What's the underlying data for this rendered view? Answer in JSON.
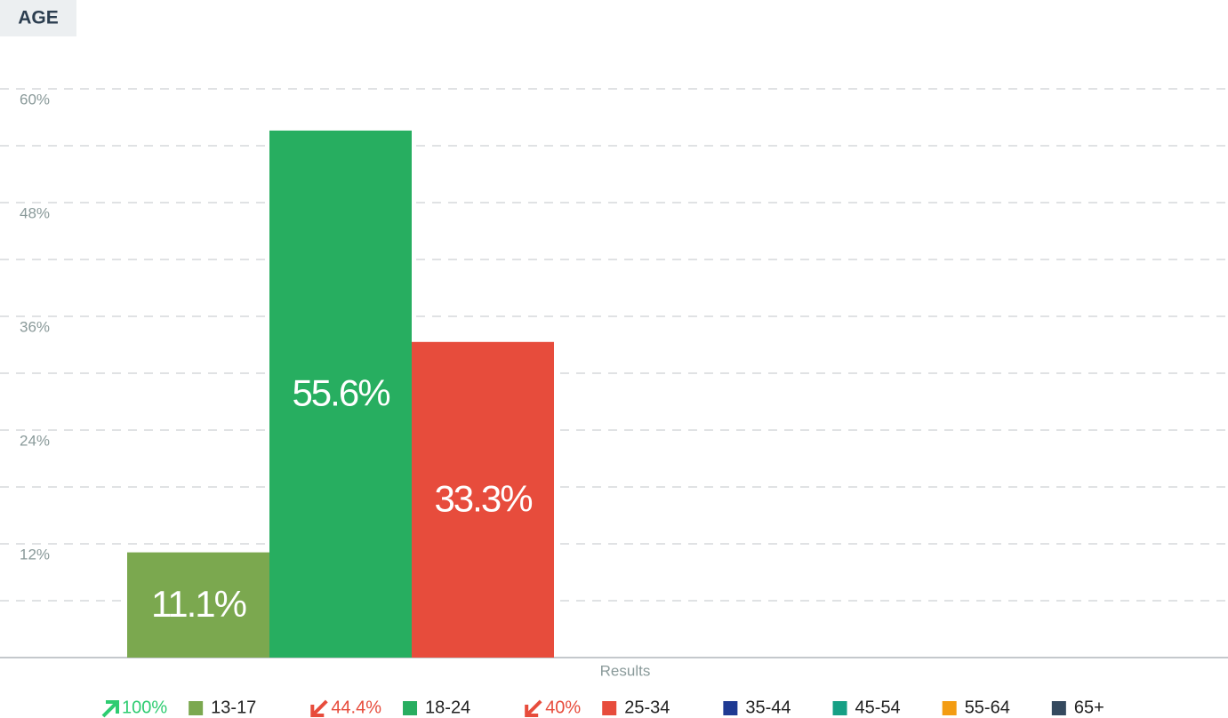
{
  "chart_data": {
    "type": "bar",
    "title": "AGE",
    "categories": [
      "Results"
    ],
    "series": [
      {
        "name": "13-17",
        "color": "#7ba84f",
        "values": [
          11.1
        ],
        "value_labels": [
          "11.1%"
        ],
        "change": "100%",
        "change_direction": "up"
      },
      {
        "name": "18-24",
        "color": "#27ae60",
        "values": [
          55.6
        ],
        "value_labels": [
          "55.6%"
        ],
        "change": "44.4%",
        "change_direction": "down"
      },
      {
        "name": "25-34",
        "color": "#e74c3c",
        "values": [
          33.3
        ],
        "value_labels": [
          "33.3%"
        ],
        "change": "40%",
        "change_direction": "down"
      },
      {
        "name": "35-44",
        "color": "#1f3a93",
        "values": [
          0
        ]
      },
      {
        "name": "45-54",
        "color": "#16a085",
        "values": [
          0
        ]
      },
      {
        "name": "55-64",
        "color": "#f39c12",
        "values": [
          0
        ]
      },
      {
        "name": "65+",
        "color": "#34495e",
        "values": [
          0
        ]
      }
    ],
    "ylim": [
      0,
      60
    ],
    "yticks": [
      {
        "value": 12,
        "label": "12%"
      },
      {
        "value": 24,
        "label": "24%"
      },
      {
        "value": 36,
        "label": "36%"
      },
      {
        "value": 48,
        "label": "48%"
      },
      {
        "value": 60,
        "label": "60%"
      }
    ],
    "minor_yticks": [
      6,
      18,
      30,
      42,
      54
    ],
    "grid": true
  }
}
